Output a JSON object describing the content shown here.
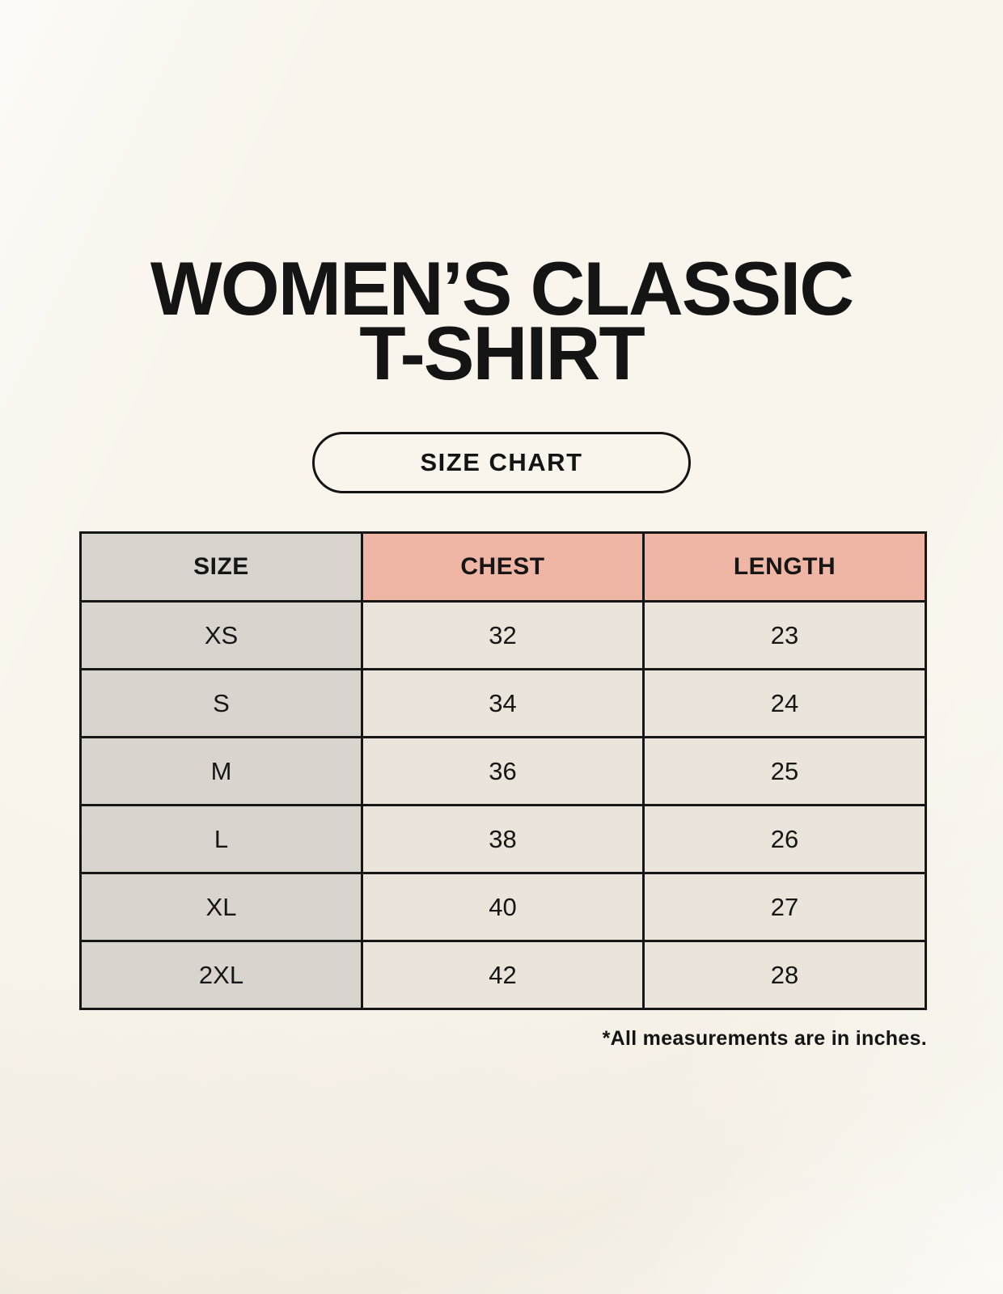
{
  "page": {
    "title": "WOMEN’S CLASSIC\nT-SHIRT",
    "size_chart_badge": "SIZE CHART",
    "footnote": "*All measurements are in inches."
  },
  "colors": {
    "page_background": "#f9f5ed",
    "size_column_background": "#dad4cf",
    "header_accent_background": "#efb6a6",
    "data_cell_background": "#eae4da",
    "border": "#161616",
    "text": "#141414"
  },
  "chart_data": {
    "type": "table",
    "title": "WOMEN’S CLASSIC T-SHIRT",
    "subtitle": "SIZE CHART",
    "columns": [
      "SIZE",
      "CHEST",
      "LENGTH"
    ],
    "rows": [
      {
        "size": "XS",
        "chest": 32,
        "length": 23
      },
      {
        "size": "S",
        "chest": 34,
        "length": 24
      },
      {
        "size": "M",
        "chest": 36,
        "length": 25
      },
      {
        "size": "L",
        "chest": 38,
        "length": 26
      },
      {
        "size": "XL",
        "chest": 40,
        "length": 27
      },
      {
        "size": "2XL",
        "chest": 42,
        "length": 28
      }
    ],
    "units_note": "*All measurements are in inches.",
    "layout": {
      "grid": true,
      "accent_header_columns": [
        "CHEST",
        "LENGTH"
      ],
      "units": "inches"
    }
  }
}
